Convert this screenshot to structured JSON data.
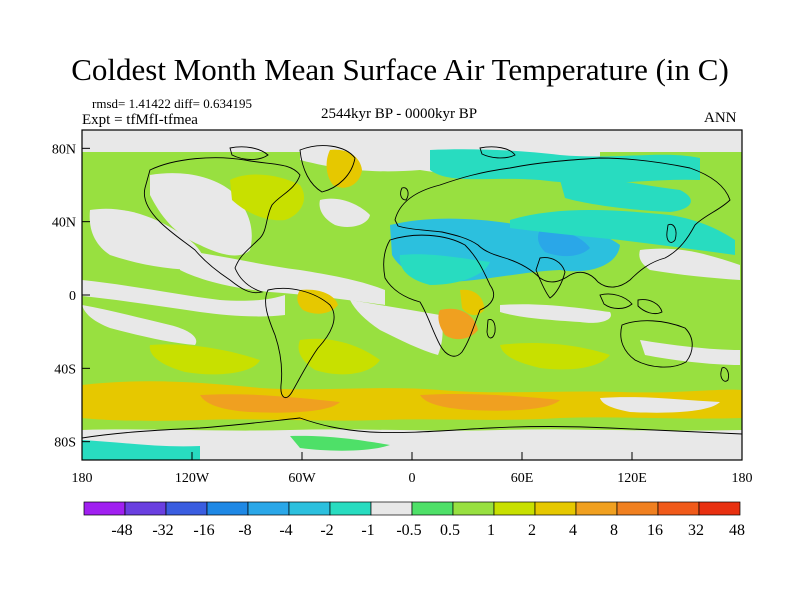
{
  "title": "Coldest Month Mean Surface Air Temperature (in C)",
  "stats_text": "rmsd= 1.41422 diff= 0.634195",
  "expt_text": "Expt = tfMfI-tfmea",
  "period_text": "2544kyr BP - 0000kyr BP",
  "season_text": "ANN",
  "y_ticks": [
    {
      "label": "80N",
      "lat": 80
    },
    {
      "label": "40N",
      "lat": 40
    },
    {
      "label": "0",
      "lat": 0
    },
    {
      "label": "40S",
      "lat": -40
    },
    {
      "label": "80S",
      "lat": -80
    }
  ],
  "x_ticks": [
    {
      "label": "180",
      "lon": -180
    },
    {
      "label": "120W",
      "lon": -120
    },
    {
      "label": "60W",
      "lon": -60
    },
    {
      "label": "0",
      "lon": 0
    },
    {
      "label": "60E",
      "lon": 60
    },
    {
      "label": "120E",
      "lon": 120
    },
    {
      "label": "180",
      "lon": 180
    }
  ],
  "colorbar": {
    "colors": [
      "#a020f0",
      "#6a3fe0",
      "#3a5de0",
      "#1e88e5",
      "#2aa7e8",
      "#2cc0de",
      "#28dcc0",
      "#e8e8e8",
      "#4ee068",
      "#98e040",
      "#c8e000",
      "#e6c800",
      "#f0a020",
      "#f08020",
      "#f05a1a",
      "#e83010"
    ],
    "labels": [
      "-48",
      "-32",
      "-16",
      "-8",
      "-4",
      "-2",
      "-1",
      "-0.5",
      "0.5",
      "1",
      "2",
      "4",
      "8",
      "16",
      "32",
      "48"
    ]
  }
}
